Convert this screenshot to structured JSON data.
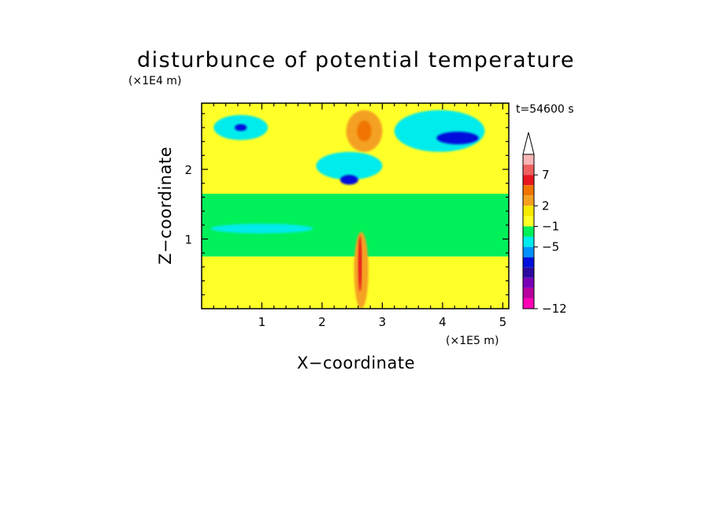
{
  "chart_data": {
    "type": "heatmap",
    "title": "disturbunce of potential temperature",
    "time_label": "t=54600 s",
    "xlabel": "X−coordinate",
    "ylabel": "Z−coordinate",
    "x_scale_label": "(×1E5 m)",
    "y_scale_label": "(×1E4 m)",
    "xlim": [
      0,
      5.1
    ],
    "ylim": [
      0,
      2.95
    ],
    "x_ticks": [
      1,
      2,
      3,
      4,
      5
    ],
    "y_ticks": [
      1,
      2
    ],
    "colorbar": {
      "levels_labeled": [
        "7",
        "2",
        "−1",
        "−5",
        "−12"
      ],
      "colors_top_to_bottom": [
        "#f7b5b5",
        "#ef6060",
        "#e8161e",
        "#f07400",
        "#f4a020",
        "#f5ea00",
        "#ffff28",
        "#00f05a",
        "#00ebeb",
        "#0090ff",
        "#0010dc",
        "#2c0aa0",
        "#7a00b8",
        "#b8009e",
        "#ff00b4"
      ],
      "extend_max": true
    },
    "colors": {
      "yellow": "#ffff28",
      "light_yellow": "#f5ea00",
      "green": "#00f05a",
      "cyan": "#00ebeb",
      "orange": "#f4a020",
      "dark_orange": "#f07400",
      "blue": "#0090ff",
      "dark_blue": "#0010dc",
      "red": "#e8161e"
    },
    "features": [
      {
        "kind": "band",
        "color": "yellow",
        "z": [
          0.0,
          0.75
        ]
      },
      {
        "kind": "band",
        "color": "green",
        "z": [
          0.75,
          1.65
        ]
      },
      {
        "kind": "band",
        "color": "yellow",
        "z": [
          1.65,
          2.95
        ]
      },
      {
        "kind": "blob",
        "color": "cyan",
        "x": 0.65,
        "z": 2.6,
        "rx": 0.45,
        "rz": 0.18
      },
      {
        "kind": "blob",
        "color": "dark_blue",
        "x": 0.65,
        "z": 2.6,
        "rx": 0.1,
        "rz": 0.05
      },
      {
        "kind": "blob",
        "color": "orange",
        "x": 2.7,
        "z": 2.55,
        "rx": 0.3,
        "rz": 0.3
      },
      {
        "kind": "blob",
        "color": "dark_orange",
        "x": 2.7,
        "z": 2.55,
        "rx": 0.12,
        "rz": 0.15
      },
      {
        "kind": "blob",
        "color": "cyan",
        "x": 2.45,
        "z": 2.05,
        "rx": 0.55,
        "rz": 0.2
      },
      {
        "kind": "blob",
        "color": "dark_blue",
        "x": 2.45,
        "z": 1.85,
        "rx": 0.15,
        "rz": 0.07
      },
      {
        "kind": "blob",
        "color": "cyan",
        "x": 3.95,
        "z": 2.55,
        "rx": 0.75,
        "rz": 0.3
      },
      {
        "kind": "blob",
        "color": "dark_blue",
        "x": 4.25,
        "z": 2.45,
        "rx": 0.35,
        "rz": 0.09
      },
      {
        "kind": "blob",
        "color": "cyan",
        "x": 1.0,
        "z": 1.15,
        "rx": 0.85,
        "rz": 0.07
      },
      {
        "kind": "blob",
        "color": "orange",
        "x": 2.65,
        "z": 0.55,
        "rx": 0.12,
        "rz": 0.55
      },
      {
        "kind": "blob",
        "color": "red",
        "x": 2.63,
        "z": 0.65,
        "rx": 0.03,
        "rz": 0.4
      }
    ]
  }
}
